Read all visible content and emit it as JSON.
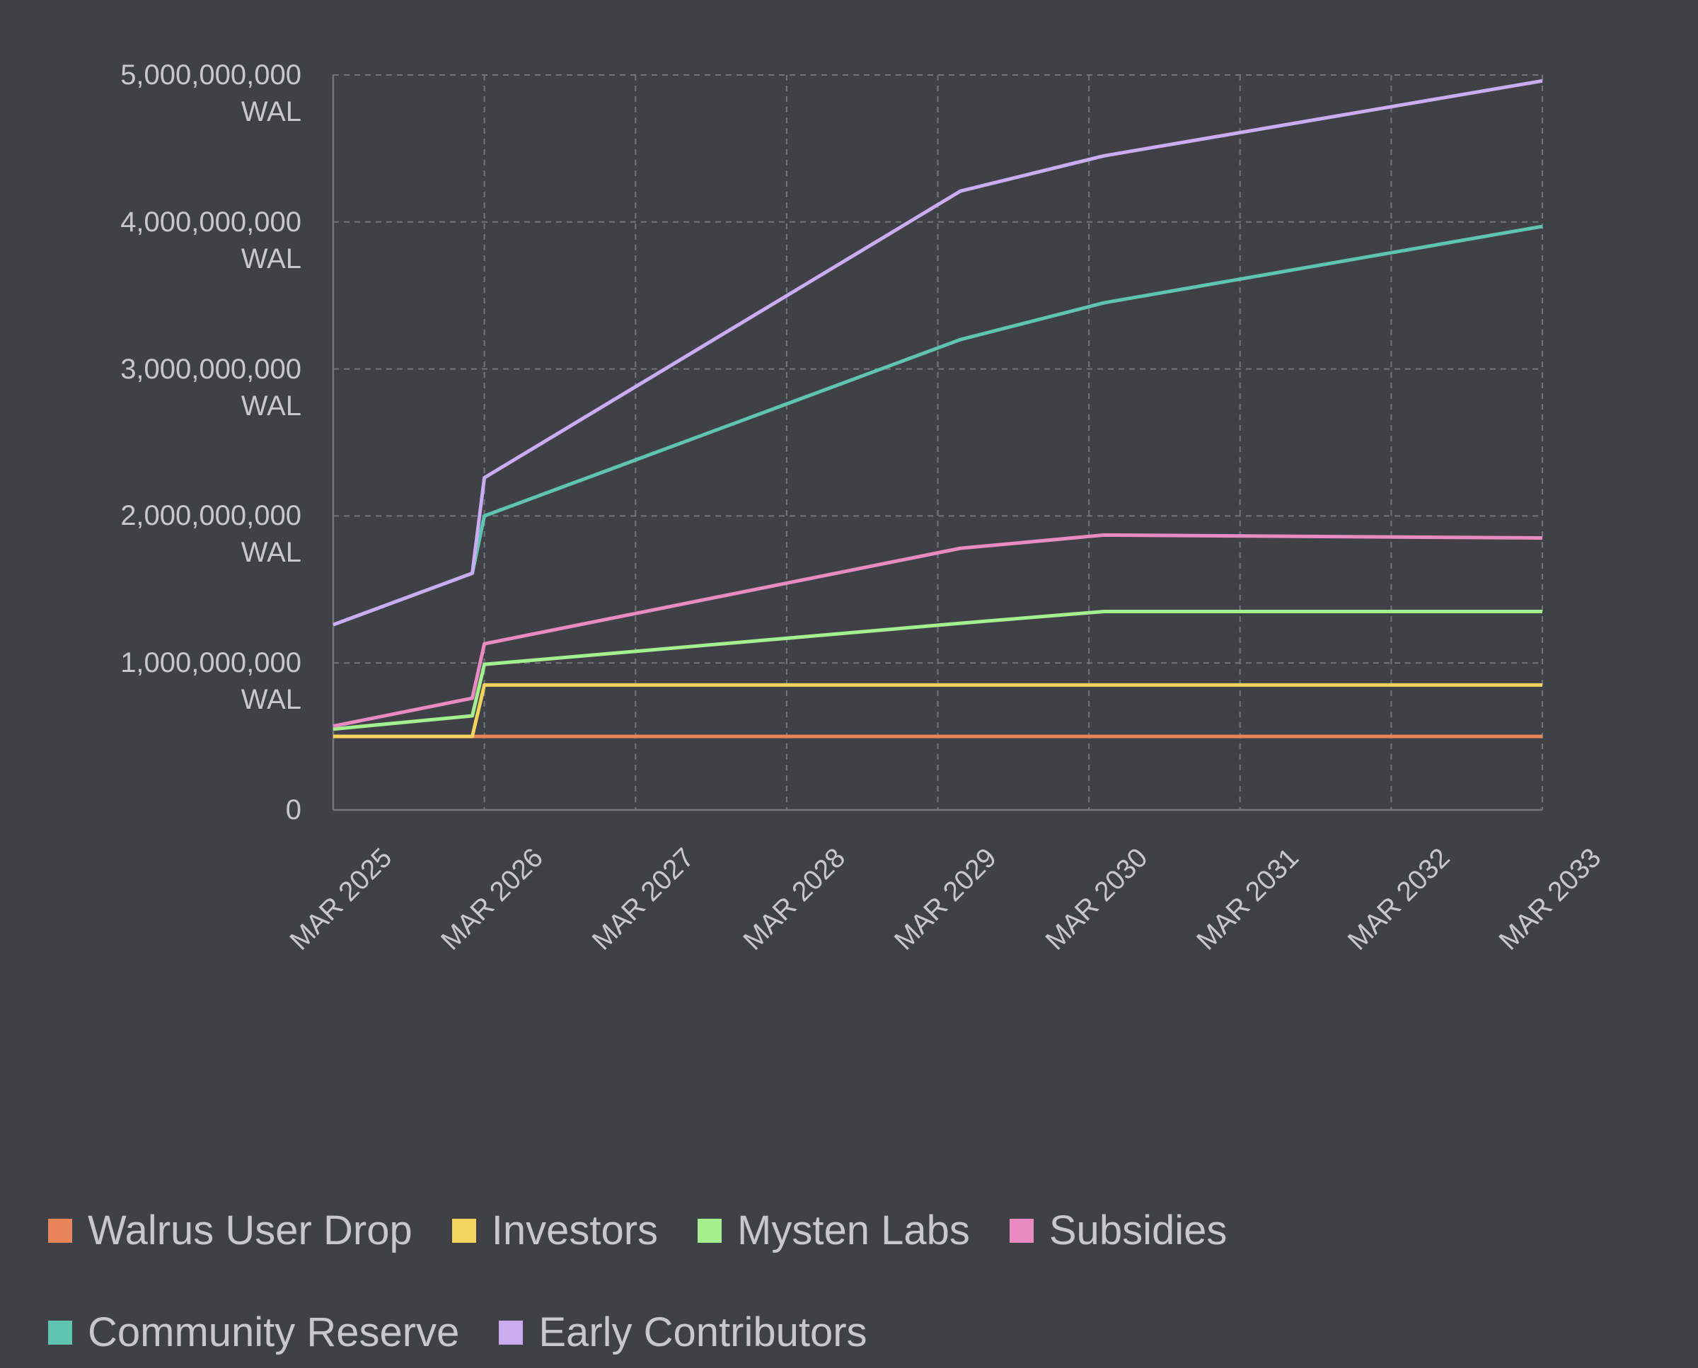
{
  "chart_data": {
    "type": "stacked-line",
    "x": [
      2025,
      2025.92,
      2026.0,
      2029.15,
      2030.1,
      2033
    ],
    "series": [
      {
        "name": "Walrus User Drop",
        "color": "#e8845a",
        "values": [
          500000000,
          500000000,
          500000000,
          500000000,
          500000000,
          500000000
        ]
      },
      {
        "name": "Investors",
        "color": "#f2d35f",
        "values": [
          0,
          0,
          350000000,
          350000000,
          350000000,
          350000000
        ]
      },
      {
        "name": "Mysten Labs",
        "color": "#a4ef8f",
        "values": [
          50000000,
          140000000,
          140000000,
          420000000,
          500000000,
          500000000
        ]
      },
      {
        "name": "Subsidies",
        "color": "#e98bc3",
        "values": [
          20000000,
          120000000,
          140000000,
          510000000,
          520000000,
          500000000
        ]
      },
      {
        "name": "Community Reserve",
        "color": "#5fc4b1",
        "values": [
          690000000,
          850000000,
          870000000,
          1420000000,
          1580000000,
          2120000000
        ]
      },
      {
        "name": "Early Contributors",
        "color": "#c9acf2",
        "values": [
          0,
          0,
          260000000,
          1010000000,
          1000000000,
          990000000
        ]
      }
    ],
    "xlim": [
      2025,
      2033
    ],
    "xticks": [
      {
        "value": 2025,
        "label": "MAR 2025"
      },
      {
        "value": 2026,
        "label": "MAR 2026"
      },
      {
        "value": 2027,
        "label": "MAR 2027"
      },
      {
        "value": 2028,
        "label": "MAR 2028"
      },
      {
        "value": 2029,
        "label": "MAR 2029"
      },
      {
        "value": 2030,
        "label": "MAR 2030"
      },
      {
        "value": 2031,
        "label": "MAR 2031"
      },
      {
        "value": 2032,
        "label": "MAR 2032"
      },
      {
        "value": 2033,
        "label": "MAR 2033"
      }
    ],
    "ylim": [
      0,
      5000000000
    ],
    "yticks": [
      0,
      {
        "value": 1000000000,
        "label": "1,000,000,000 WAL"
      },
      {
        "value": 2000000000,
        "label": "2,000,000,000 WAL"
      },
      {
        "value": 3000000000,
        "label": "3,000,000,000 WAL"
      },
      {
        "value": 4000000000,
        "label": "4,000,000,000 WAL"
      },
      {
        "value": 5000000000,
        "label": "5,000,000,000 WAL"
      }
    ],
    "grid": true
  }
}
